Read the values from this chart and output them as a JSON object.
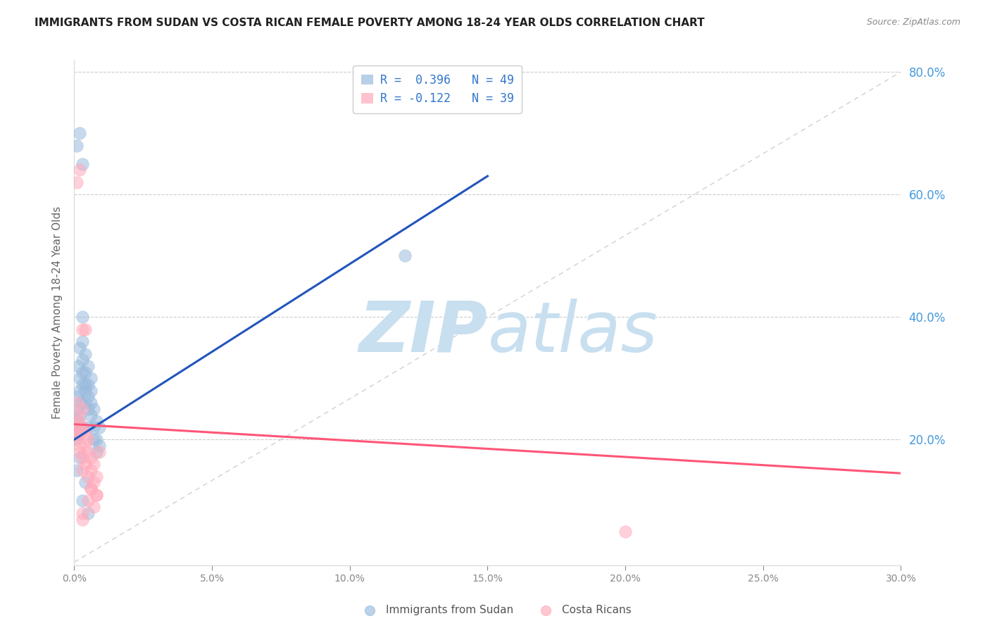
{
  "title": "IMMIGRANTS FROM SUDAN VS COSTA RICAN FEMALE POVERTY AMONG 18-24 YEAR OLDS CORRELATION CHART",
  "source": "Source: ZipAtlas.com",
  "ylabel": "Female Poverty Among 18-24 Year Olds",
  "xlim": [
    0.0,
    0.3
  ],
  "ylim": [
    0.0,
    0.82
  ],
  "plot_ylim": [
    -0.005,
    0.82
  ],
  "xticks": [
    0.0,
    0.05,
    0.1,
    0.15,
    0.2,
    0.25,
    0.3
  ],
  "right_ytick_values": [
    0.2,
    0.4,
    0.6,
    0.8
  ],
  "legend1_label": "R =  0.396   N = 49",
  "legend2_label": "R = -0.122   N = 39",
  "legend_bottom_label1": "Immigrants from Sudan",
  "legend_bottom_label2": "Costa Ricans",
  "blue_color": "#99bbdd",
  "pink_color": "#ffaabb",
  "blue_line_color": "#2255bb",
  "pink_line_color": "#ff5577",
  "right_axis_color": "#4499dd",
  "blue_text_color": "#3377cc",
  "sudan_x": [
    0.0005,
    0.0008,
    0.001,
    0.001,
    0.0012,
    0.0015,
    0.0015,
    0.002,
    0.002,
    0.002,
    0.002,
    0.0025,
    0.003,
    0.003,
    0.003,
    0.003,
    0.003,
    0.003,
    0.004,
    0.004,
    0.004,
    0.004,
    0.004,
    0.005,
    0.005,
    0.005,
    0.005,
    0.005,
    0.006,
    0.006,
    0.006,
    0.006,
    0.007,
    0.007,
    0.007,
    0.008,
    0.008,
    0.008,
    0.009,
    0.009,
    0.001,
    0.002,
    0.003,
    0.001,
    0.002,
    0.004,
    0.003,
    0.005,
    0.12
  ],
  "sudan_y": [
    0.2,
    0.22,
    0.21,
    0.25,
    0.23,
    0.27,
    0.32,
    0.28,
    0.3,
    0.24,
    0.35,
    0.26,
    0.22,
    0.29,
    0.31,
    0.33,
    0.36,
    0.4,
    0.26,
    0.29,
    0.31,
    0.34,
    0.28,
    0.22,
    0.25,
    0.29,
    0.32,
    0.27,
    0.24,
    0.26,
    0.28,
    0.3,
    0.2,
    0.22,
    0.25,
    0.18,
    0.2,
    0.23,
    0.19,
    0.22,
    0.68,
    0.7,
    0.65,
    0.15,
    0.17,
    0.13,
    0.1,
    0.08,
    0.5
  ],
  "costa_x": [
    0.0003,
    0.0005,
    0.001,
    0.001,
    0.001,
    0.0015,
    0.002,
    0.002,
    0.002,
    0.002,
    0.003,
    0.003,
    0.003,
    0.003,
    0.004,
    0.004,
    0.004,
    0.005,
    0.005,
    0.005,
    0.006,
    0.006,
    0.006,
    0.007,
    0.007,
    0.008,
    0.008,
    0.009,
    0.001,
    0.002,
    0.003,
    0.004,
    0.005,
    0.006,
    0.007,
    0.008,
    0.003,
    0.003,
    0.2
  ],
  "costa_y": [
    0.22,
    0.2,
    0.21,
    0.24,
    0.26,
    0.22,
    0.21,
    0.23,
    0.18,
    0.19,
    0.25,
    0.22,
    0.17,
    0.15,
    0.19,
    0.16,
    0.21,
    0.18,
    0.14,
    0.2,
    0.12,
    0.15,
    0.17,
    0.13,
    0.16,
    0.14,
    0.11,
    0.18,
    0.62,
    0.64,
    0.38,
    0.38,
    0.1,
    0.12,
    0.09,
    0.11,
    0.08,
    0.07,
    0.05
  ],
  "blue_line_x0": 0.0,
  "blue_line_y0": 0.2,
  "blue_line_x1": 0.15,
  "blue_line_y1": 0.63,
  "pink_line_x0": 0.0,
  "pink_line_y0": 0.225,
  "pink_line_x1": 0.3,
  "pink_line_y1": 0.145
}
